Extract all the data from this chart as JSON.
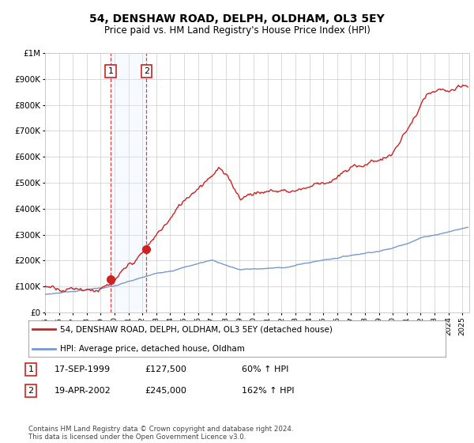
{
  "title": "54, DENSHAW ROAD, DELPH, OLDHAM, OL3 5EY",
  "subtitle": "Price paid vs. HM Land Registry's House Price Index (HPI)",
  "sale1": {
    "date_num": 1999.72,
    "price": 127500,
    "label": "1",
    "date_str": "17-SEP-1999",
    "pct": "60% ↑ HPI"
  },
  "sale2": {
    "date_num": 2002.29,
    "price": 245000,
    "label": "2",
    "date_str": "19-APR-2002",
    "pct": "162% ↑ HPI"
  },
  "legend_line1": "54, DENSHAW ROAD, DELPH, OLDHAM, OL3 5EY (detached house)",
  "legend_line2": "HPI: Average price, detached house, Oldham",
  "footnote": "Contains HM Land Registry data © Crown copyright and database right 2024.\nThis data is licensed under the Open Government Licence v3.0.",
  "table_rows": [
    {
      "num": "1",
      "date": "17-SEP-1999",
      "price": "£127,500",
      "pct": "60% ↑ HPI"
    },
    {
      "num": "2",
      "date": "19-APR-2002",
      "price": "£245,000",
      "pct": "162% ↑ HPI"
    }
  ],
  "ylim": [
    0,
    1000000
  ],
  "xlim": [
    1995.0,
    2025.5
  ],
  "yticks": [
    0,
    100000,
    200000,
    300000,
    400000,
    500000,
    600000,
    700000,
    800000,
    900000,
    1000000
  ],
  "ytick_labels": [
    "£0",
    "£100K",
    "£200K",
    "£300K",
    "£400K",
    "£500K",
    "£600K",
    "£700K",
    "£800K",
    "£900K",
    "£1M"
  ],
  "red_color": "#cc2222",
  "blue_color": "#7799cc",
  "shade_color": "#ddeeff",
  "bg_color": "#ffffff",
  "grid_color": "#cccccc"
}
